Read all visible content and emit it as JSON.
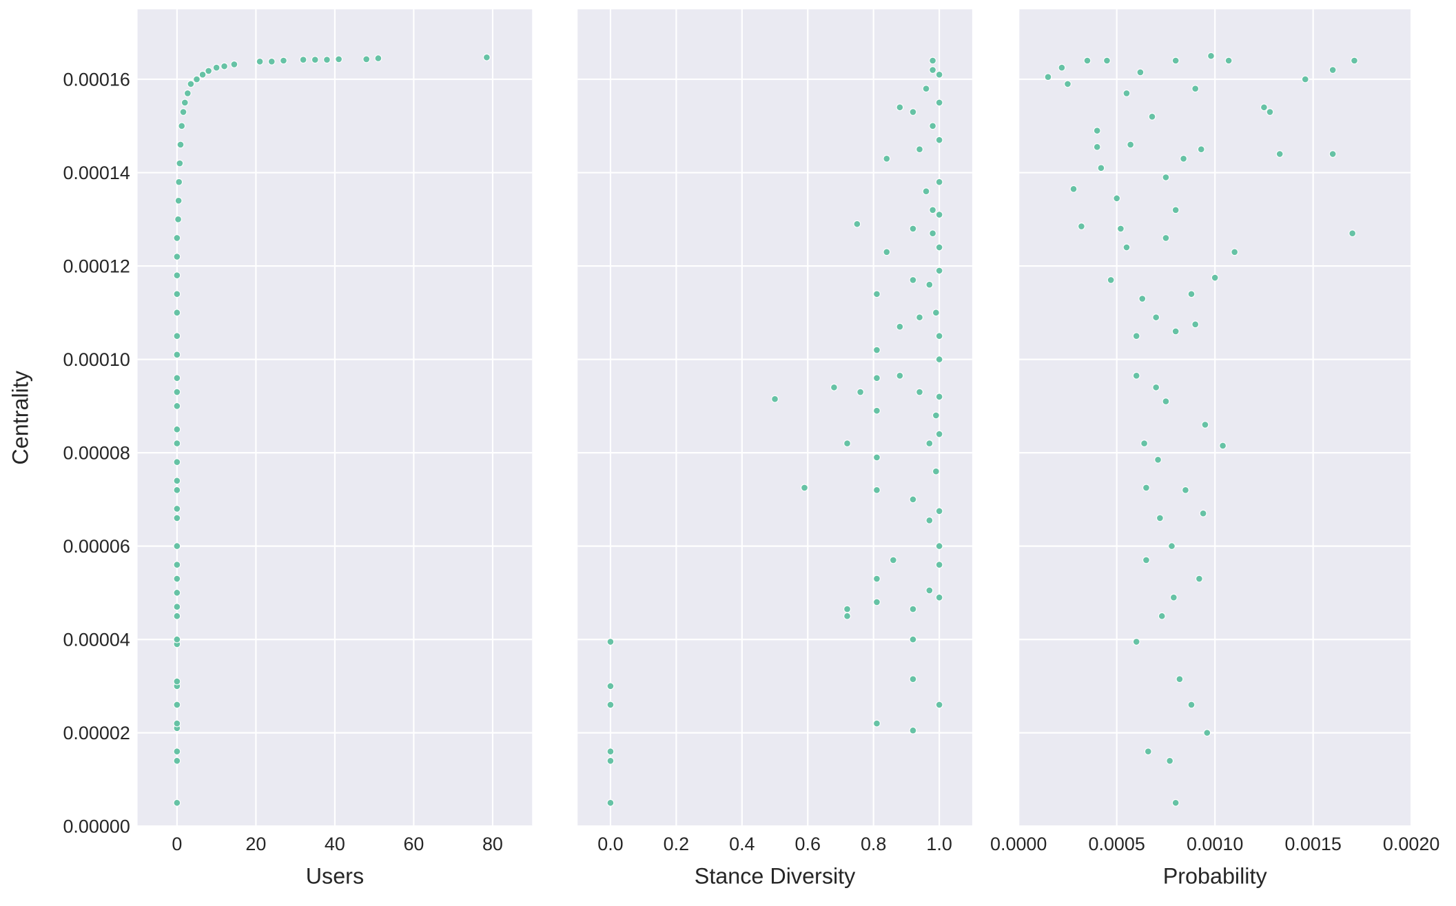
{
  "chart_data": [
    {
      "type": "scatter",
      "xlabel": "Users",
      "ylabel": "Centrality",
      "color": "#66c2a5",
      "grid": true,
      "xlim": [
        -10,
        90
      ],
      "xticks": [
        0,
        20,
        40,
        60,
        80
      ],
      "ylim": [
        0,
        0.000175
      ],
      "yticks": [
        {
          "value": 0,
          "label": "0.00000"
        },
        {
          "value": 2e-05,
          "label": "0.00002"
        },
        {
          "value": 4e-05,
          "label": "0.00004"
        },
        {
          "value": 6e-05,
          "label": "0.00006"
        },
        {
          "value": 8e-05,
          "label": "0.00008"
        },
        {
          "value": 0.0001,
          "label": "0.00010"
        },
        {
          "value": 0.00012,
          "label": "0.00012"
        },
        {
          "value": 0.00014,
          "label": "0.00014"
        },
        {
          "value": 0.00016,
          "label": "0.00016"
        }
      ],
      "x": [
        0,
        0,
        0,
        0,
        0,
        0,
        0,
        0,
        0,
        0,
        0,
        0,
        0,
        0,
        0,
        0,
        0,
        0,
        0,
        0,
        0,
        0,
        0,
        0,
        0,
        0,
        0,
        0,
        0,
        0,
        0,
        0,
        0,
        0.3,
        0.4,
        0.5,
        0.7,
        0.9,
        1.2,
        1.6,
        2,
        2.7,
        3.5,
        5,
        6.5,
        8,
        10,
        12,
        14.5,
        21,
        24,
        27,
        32,
        35,
        38,
        41,
        48,
        51,
        78.5
      ],
      "y": [
        5e-06,
        1.4e-05,
        1.6e-05,
        2.1e-05,
        2.2e-05,
        2.6e-05,
        3e-05,
        3.1e-05,
        3.9e-05,
        4e-05,
        4.5e-05,
        4.7e-05,
        5e-05,
        5.3e-05,
        5.6e-05,
        6e-05,
        6.6e-05,
        6.8e-05,
        7.2e-05,
        7.4e-05,
        7.8e-05,
        8.2e-05,
        8.5e-05,
        9e-05,
        9.3e-05,
        9.6e-05,
        0.000101,
        0.000105,
        0.00011,
        0.000114,
        0.000118,
        0.000122,
        0.000126,
        0.00013,
        0.000134,
        0.000138,
        0.000142,
        0.000146,
        0.00015,
        0.000153,
        0.000155,
        0.000157,
        0.000159,
        0.00016,
        0.000161,
        0.0001618,
        0.0001625,
        0.0001628,
        0.0001632,
        0.0001638,
        0.0001638,
        0.000164,
        0.0001642,
        0.0001642,
        0.0001642,
        0.0001643,
        0.0001643,
        0.0001645,
        0.0001647
      ]
    },
    {
      "type": "scatter",
      "xlabel": "Stance Diversity",
      "color": "#66c2a5",
      "grid": true,
      "xlim": [
        -0.1,
        1.1
      ],
      "xticks": [
        {
          "value": 0,
          "label": "0.0"
        },
        0.2,
        0.4,
        0.6,
        0.8,
        {
          "value": 1,
          "label": "1.0"
        }
      ],
      "x": [
        0,
        0,
        0,
        0,
        0,
        0,
        0.5,
        0.59,
        0.68,
        0.72,
        0.72,
        0.72,
        0.75,
        0.76,
        0.81,
        0.81,
        0.81,
        0.81,
        0.81,
        0.81,
        0.81,
        0.81,
        0.81,
        0.84,
        0.84,
        0.86,
        0.88,
        0.88,
        0.88,
        0.92,
        0.92,
        0.92,
        0.92,
        0.92,
        0.92,
        0.92,
        0.92,
        0.94,
        0.94,
        0.94,
        0.96,
        0.96,
        0.97,
        0.97,
        0.97,
        0.97,
        0.98,
        0.98,
        0.98,
        0.98,
        0.98,
        0.99,
        0.99,
        0.99,
        1,
        1,
        1,
        1,
        1,
        1,
        1,
        1,
        1,
        1,
        1,
        1,
        1,
        1,
        1,
        1
      ],
      "y": [
        5e-06,
        1.4e-05,
        1.6e-05,
        2.6e-05,
        3e-05,
        3.95e-05,
        9.15e-05,
        7.25e-05,
        9.4e-05,
        8.2e-05,
        4.65e-05,
        4.5e-05,
        0.000129,
        9.3e-05,
        0.000114,
        9.6e-05,
        8.9e-05,
        7.9e-05,
        7.2e-05,
        5.3e-05,
        4.8e-05,
        2.2e-05,
        0.000102,
        0.000143,
        0.000123,
        5.7e-05,
        0.000154,
        0.000107,
        9.65e-05,
        0.000153,
        0.000128,
        0.000117,
        7e-05,
        4.65e-05,
        4e-05,
        3.15e-05,
        2.05e-05,
        0.000145,
        0.000109,
        9.3e-05,
        0.000158,
        0.000136,
        0.000116,
        8.2e-05,
        6.55e-05,
        5.05e-05,
        0.000164,
        0.000162,
        0.00015,
        0.000132,
        0.000127,
        0.00011,
        8.8e-05,
        7.6e-05,
        0.000161,
        0.000155,
        0.000147,
        0.000138,
        0.000131,
        0.000124,
        0.000119,
        0.000105,
        0.0001,
        9.2e-05,
        8.4e-05,
        6.75e-05,
        6e-05,
        5.6e-05,
        4.9e-05,
        2.6e-05
      ]
    },
    {
      "type": "scatter",
      "xlabel": "Probability",
      "color": "#66c2a5",
      "grid": true,
      "xlim": [
        0,
        0.002
      ],
      "xticks": [
        {
          "value": 0,
          "label": "0.0000"
        },
        {
          "value": 0.0005,
          "label": "0.0005"
        },
        {
          "value": 0.001,
          "label": "0.0010"
        },
        {
          "value": 0.0015,
          "label": "0.0015"
        },
        {
          "value": 0.002,
          "label": "0.0020"
        }
      ],
      "x": [
        0.00015,
        0.00022,
        0.00025,
        0.00028,
        0.00032,
        0.00035,
        0.0004,
        0.0004,
        0.00042,
        0.00045,
        0.00047,
        0.0005,
        0.00052,
        0.00055,
        0.00055,
        0.00057,
        0.0006,
        0.0006,
        0.0006,
        0.00062,
        0.00063,
        0.00064,
        0.00065,
        0.00065,
        0.00066,
        0.00068,
        0.0007,
        0.0007,
        0.00071,
        0.00072,
        0.00073,
        0.00075,
        0.00075,
        0.00075,
        0.00077,
        0.00078,
        0.00079,
        0.0008,
        0.0008,
        0.0008,
        0.0008,
        0.00082,
        0.00084,
        0.00085,
        0.00088,
        0.00088,
        0.0009,
        0.0009,
        0.00092,
        0.00093,
        0.00094,
        0.00095,
        0.00096,
        0.00098,
        0.001,
        0.00104,
        0.00107,
        0.0011,
        0.00125,
        0.00128,
        0.00133,
        0.00146,
        0.0016,
        0.0016,
        0.0017,
        0.00171
      ],
      "y": [
        0.0001605,
        0.0001625,
        0.000159,
        0.0001365,
        0.0001285,
        0.000164,
        0.000149,
        0.0001455,
        0.000141,
        0.000164,
        0.000117,
        0.0001345,
        0.000128,
        0.000157,
        0.000124,
        0.000146,
        0.000105,
        9.65e-05,
        3.95e-05,
        0.0001615,
        0.000113,
        8.2e-05,
        7.25e-05,
        5.7e-05,
        1.6e-05,
        0.000152,
        0.000109,
        9.4e-05,
        7.85e-05,
        6.6e-05,
        4.5e-05,
        0.000139,
        0.000126,
        9.1e-05,
        1.4e-05,
        6e-05,
        4.9e-05,
        0.000164,
        0.000132,
        0.000106,
        5e-06,
        3.15e-05,
        0.000143,
        7.2e-05,
        0.000114,
        2.6e-05,
        0.000158,
        0.0001075,
        5.3e-05,
        0.000145,
        6.7e-05,
        8.6e-05,
        2e-05,
        0.000165,
        0.0001175,
        8.15e-05,
        0.000164,
        0.000123,
        0.000154,
        0.000153,
        0.000144,
        0.00016,
        0.000162,
        0.000144,
        0.000127,
        0.000164
      ]
    }
  ]
}
